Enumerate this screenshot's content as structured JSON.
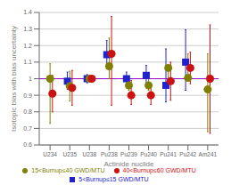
{
  "chart_data": {
    "type": "scatter",
    "xlabel": "Actinide nuclide",
    "ylabel": "Isotopic bias with bias uncertainty",
    "categories": [
      "U234",
      "U235",
      "U238",
      "Pu238",
      "Pu239",
      "Pu240",
      "Pu241",
      "Pu242",
      "Am241"
    ],
    "ylim": [
      0.6,
      1.4
    ],
    "yticks": [
      0.6,
      0.7,
      0.8,
      0.9,
      1,
      1.1,
      1.2,
      1.3,
      1.4
    ],
    "grid": true,
    "legend": "bottom",
    "hline": {
      "y": 1,
      "color": "#9900CC"
    },
    "series": [
      {
        "name": "5<Burnup≤15 GWD/MTU",
        "color": "#2222CC",
        "marker": "square",
        "values": [
          null,
          0.985,
          1.0,
          1.145,
          1.0,
          1.02,
          0.96,
          1.1,
          null
        ],
        "lower": [
          null,
          0.935,
          0.975,
          1.06,
          0.96,
          0.96,
          0.86,
          0.93,
          null
        ],
        "upper": [
          null,
          1.04,
          1.025,
          1.23,
          1.04,
          1.08,
          1.18,
          1.295,
          null
        ]
      },
      {
        "name": "15<Burnup≤40 GWD/MTU",
        "color": "#808000",
        "marker": "circle",
        "values": [
          1.0,
          0.955,
          1.0,
          1.075,
          0.96,
          0.96,
          1.065,
          1.005,
          0.935
        ],
        "lower": [
          0.73,
          0.865,
          0.99,
          1.0,
          0.93,
          0.93,
          0.97,
          0.99,
          0.68
        ],
        "upper": [
          1.09,
          1.045,
          1.01,
          1.245,
          1.0,
          1.005,
          1.065,
          1.15,
          1.15
        ]
      },
      {
        "name": "40<Burnup≤60 GWD/MTU",
        "color": "#CC1111",
        "marker": "circle",
        "values": [
          0.91,
          0.945,
          1.0,
          1.15,
          0.9,
          0.9,
          0.985,
          1.065,
          1.0
        ],
        "lower": [
          0.8,
          0.84,
          0.995,
          0.84,
          0.845,
          0.845,
          0.87,
          0.97,
          0.67
        ],
        "upper": [
          1.02,
          1.05,
          1.005,
          1.375,
          0.99,
          0.965,
          1.1,
          1.16,
          1.325
        ]
      }
    ]
  }
}
